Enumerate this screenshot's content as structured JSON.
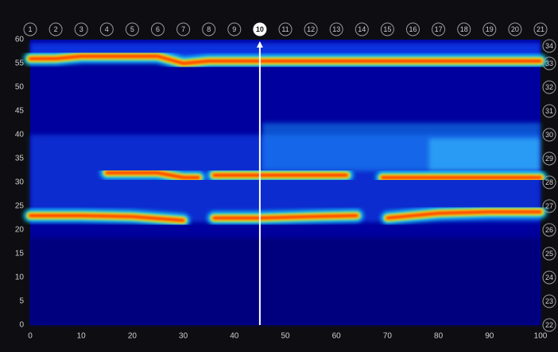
{
  "chart_data": {
    "type": "heatmap",
    "xlim": [
      0,
      100
    ],
    "xticks": [
      0,
      10,
      20,
      30,
      40,
      50,
      60,
      70,
      80,
      90,
      100
    ],
    "ylim": [
      0,
      60
    ],
    "yticks": [
      0,
      5,
      10,
      15,
      20,
      25,
      30,
      35,
      40,
      45,
      50,
      55,
      60
    ],
    "top_markers": [
      {
        "value": 0,
        "label": "1"
      },
      {
        "value": 5,
        "label": "2"
      },
      {
        "value": 10,
        "label": "3"
      },
      {
        "value": 15,
        "label": "4"
      },
      {
        "value": 20,
        "label": "5"
      },
      {
        "value": 25,
        "label": "6"
      },
      {
        "value": 30,
        "label": "7"
      },
      {
        "value": 35,
        "label": "8"
      },
      {
        "value": 40,
        "label": "9"
      },
      {
        "value": 45,
        "label": "10"
      },
      {
        "value": 50,
        "label": "11"
      },
      {
        "value": 55,
        "label": "12"
      },
      {
        "value": 60,
        "label": "13"
      },
      {
        "value": 65,
        "label": "14"
      },
      {
        "value": 70,
        "label": "15"
      },
      {
        "value": 75,
        "label": "16"
      },
      {
        "value": 80,
        "label": "17"
      },
      {
        "value": 85,
        "label": "18"
      },
      {
        "value": 90,
        "label": "19"
      },
      {
        "value": 95,
        "label": "20"
      },
      {
        "value": 100,
        "label": "21"
      }
    ],
    "right_markers": [
      {
        "value": 0,
        "label": "22"
      },
      {
        "value": 5,
        "label": "23"
      },
      {
        "value": 10,
        "label": "24"
      },
      {
        "value": 15,
        "label": "25"
      },
      {
        "value": 20,
        "label": "26"
      },
      {
        "value": 25,
        "label": "27"
      },
      {
        "value": 30,
        "label": "28"
      },
      {
        "value": 35,
        "label": "29"
      },
      {
        "value": 40,
        "label": "30"
      },
      {
        "value": 45,
        "label": "31"
      },
      {
        "value": 50,
        "label": "32"
      },
      {
        "value": 55,
        "label": "33"
      },
      {
        "value": 60,
        "label": "34"
      }
    ],
    "cursor_x": 45,
    "ridges": [
      {
        "x": [
          0,
          5,
          10,
          20,
          25,
          30,
          35,
          45,
          60,
          70,
          85,
          100
        ],
        "y": [
          56,
          56,
          56.5,
          56.5,
          56.5,
          55,
          55.5,
          55.5,
          55.5,
          55.5,
          55.5,
          55.5
        ]
      },
      {
        "x": [
          15,
          25,
          30,
          33,
          34,
          36,
          45,
          55,
          62,
          66,
          69,
          75,
          80,
          90,
          100
        ],
        "y": [
          32,
          32,
          31,
          31,
          null,
          31.5,
          31.5,
          31.5,
          31.5,
          null,
          31,
          31,
          31,
          31,
          31
        ]
      },
      {
        "x": [
          0,
          10,
          20,
          30,
          32,
          36,
          45,
          55,
          64,
          66,
          70,
          80,
          90,
          100
        ],
        "y": [
          23,
          23,
          22.8,
          22,
          null,
          22.5,
          22.5,
          22.8,
          23,
          null,
          22.5,
          23.5,
          23.8,
          23.8
        ]
      }
    ]
  }
}
